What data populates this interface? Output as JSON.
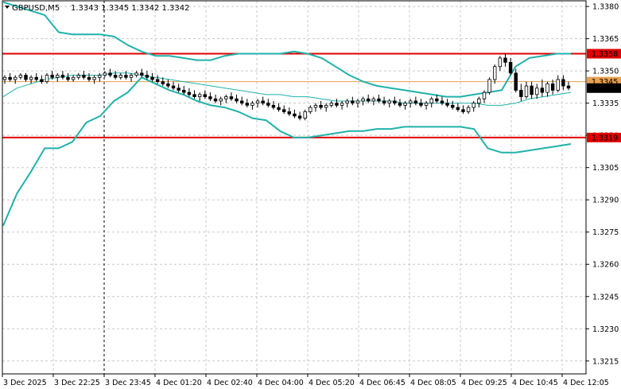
{
  "header": {
    "symbol_timeframe": "GBPUSD,M5",
    "ohlc": "1.3343 1.3345 1.3342 1.3342"
  },
  "chart_data": {
    "type": "candlestick",
    "symbol": "GBPUSD",
    "timeframe": "M5",
    "ylim": [
      1.3209,
      1.3383
    ],
    "y_ticks": [
      "1.3380",
      "1.3365",
      "1.3350",
      "1.3335",
      "1.3320",
      "1.3305",
      "1.3290",
      "1.3275",
      "1.3260",
      "1.3245",
      "1.3230",
      "1.3215"
    ],
    "x_ticks": [
      "3 Dec 2025",
      "3 Dec 22:25",
      "3 Dec 23:45",
      "4 Dec 01:20",
      "4 Dec 02:40",
      "4 Dec 04:00",
      "4 Dec 05:20",
      "4 Dec 06:45",
      "4 Dec 08:05",
      "4 Dec 09:25",
      "4 Dec 10:45",
      "4 Dec 12:05"
    ],
    "grid": true,
    "levels": [
      {
        "label": "1.3358",
        "value": 1.3358,
        "color": "#e00000"
      },
      {
        "label": "1.3319",
        "value": 1.3319,
        "color": "#e00000"
      },
      {
        "label": "1.3345",
        "value": 1.3345,
        "color": "#e8a050"
      }
    ],
    "current_price": {
      "label": "1.3342",
      "value": 1.3342
    },
    "series": [
      {
        "name": "bollinger-upper",
        "color": "#20b2aa",
        "values": [
          1.3382,
          1.338,
          1.3378,
          1.3376,
          1.3368,
          1.3367,
          1.3367,
          1.3367,
          1.3366,
          1.3362,
          1.3359,
          1.3357,
          1.3357,
          1.3356,
          1.3355,
          1.3355,
          1.3357,
          1.3358,
          1.3358,
          1.3358,
          1.3358,
          1.3359,
          1.3358,
          1.3356,
          1.3352,
          1.3348,
          1.3345,
          1.3343,
          1.3342,
          1.3341,
          1.334,
          1.3339,
          1.3338,
          1.3338,
          1.3339,
          1.334,
          1.3341,
          1.3352,
          1.3356,
          1.3357,
          1.3358,
          1.3358
        ]
      },
      {
        "name": "bollinger-middle",
        "color": "#20b2aa",
        "values": [
          1.3338,
          1.3342,
          1.3344,
          1.3346,
          1.3347,
          1.3348,
          1.3348,
          1.3348,
          1.3349,
          1.3349,
          1.3348,
          1.3347,
          1.3346,
          1.3345,
          1.3344,
          1.3343,
          1.3342,
          1.3341,
          1.334,
          1.3339,
          1.3339,
          1.3338,
          1.3338,
          1.3337,
          1.3336,
          1.3336,
          1.3336,
          1.3336,
          1.3336,
          1.3335,
          1.3335,
          1.3335,
          1.3335,
          1.3335,
          1.3335,
          1.3334,
          1.3334,
          1.3335,
          1.3337,
          1.3338,
          1.3339,
          1.334
        ]
      },
      {
        "name": "bollinger-lower",
        "color": "#20b2aa",
        "values": [
          1.3278,
          1.3293,
          1.3303,
          1.3314,
          1.3314,
          1.3317,
          1.3326,
          1.3329,
          1.3336,
          1.334,
          1.3347,
          1.3344,
          1.3341,
          1.3339,
          1.3336,
          1.3334,
          1.3333,
          1.3331,
          1.3328,
          1.3327,
          1.3322,
          1.3319,
          1.3319,
          1.332,
          1.3321,
          1.3322,
          1.3322,
          1.3323,
          1.3323,
          1.3324,
          1.3324,
          1.3324,
          1.3324,
          1.3324,
          1.3323,
          1.3314,
          1.3312,
          1.3312,
          1.3313,
          1.3314,
          1.3315,
          1.3316
        ]
      }
    ],
    "candles": [
      [
        1.3346,
        1.3348,
        1.3344,
        1.3347
      ],
      [
        1.3347,
        1.3349,
        1.3345,
        1.3346
      ],
      [
        1.3346,
        1.3348,
        1.3344,
        1.3347
      ],
      [
        1.3347,
        1.3349,
        1.3346,
        1.3348
      ],
      [
        1.3348,
        1.3349,
        1.3345,
        1.3346
      ],
      [
        1.3346,
        1.3348,
        1.3344,
        1.3347
      ],
      [
        1.3347,
        1.3349,
        1.3345,
        1.3346
      ],
      [
        1.3346,
        1.3348,
        1.3344,
        1.3345
      ],
      [
        1.3345,
        1.3349,
        1.3344,
        1.3348
      ],
      [
        1.3348,
        1.335,
        1.3346,
        1.3347
      ],
      [
        1.3347,
        1.3349,
        1.3345,
        1.3348
      ],
      [
        1.3348,
        1.335,
        1.3346,
        1.3347
      ],
      [
        1.3347,
        1.3349,
        1.3345,
        1.3346
      ],
      [
        1.3346,
        1.3348,
        1.3345,
        1.3347
      ],
      [
        1.3347,
        1.3349,
        1.3346,
        1.3348
      ],
      [
        1.3348,
        1.335,
        1.3346,
        1.3347
      ],
      [
        1.3347,
        1.3349,
        1.3345,
        1.3346
      ],
      [
        1.3346,
        1.3348,
        1.3344,
        1.3347
      ],
      [
        1.3347,
        1.3349,
        1.3345,
        1.3348
      ],
      [
        1.3348,
        1.335,
        1.3347,
        1.3349
      ],
      [
        1.3349,
        1.3351,
        1.3347,
        1.3348
      ],
      [
        1.3348,
        1.335,
        1.3346,
        1.3347
      ],
      [
        1.3347,
        1.3349,
        1.3346,
        1.3348
      ],
      [
        1.3348,
        1.335,
        1.3346,
        1.3347
      ],
      [
        1.3347,
        1.3349,
        1.3345,
        1.3348
      ],
      [
        1.3348,
        1.335,
        1.3347,
        1.3349
      ],
      [
        1.3349,
        1.3351,
        1.3347,
        1.3348
      ],
      [
        1.3348,
        1.335,
        1.3346,
        1.3347
      ],
      [
        1.3347,
        1.3349,
        1.3345,
        1.3346
      ],
      [
        1.3346,
        1.3348,
        1.3344,
        1.3345
      ],
      [
        1.3345,
        1.3347,
        1.3343,
        1.3344
      ],
      [
        1.3344,
        1.3346,
        1.3342,
        1.3343
      ],
      [
        1.3343,
        1.3345,
        1.3341,
        1.3342
      ],
      [
        1.3342,
        1.3344,
        1.334,
        1.3341
      ],
      [
        1.3341,
        1.3343,
        1.3339,
        1.334
      ],
      [
        1.334,
        1.3342,
        1.3338,
        1.3339
      ],
      [
        1.3339,
        1.3341,
        1.3337,
        1.3338
      ],
      [
        1.3338,
        1.334,
        1.3336,
        1.3339
      ],
      [
        1.3339,
        1.3341,
        1.3337,
        1.3338
      ],
      [
        1.3338,
        1.334,
        1.3336,
        1.3337
      ],
      [
        1.3337,
        1.3339,
        1.3335,
        1.3336
      ],
      [
        1.3336,
        1.3338,
        1.3334,
        1.3337
      ],
      [
        1.3337,
        1.3339,
        1.3335,
        1.3338
      ],
      [
        1.3338,
        1.334,
        1.3336,
        1.3337
      ],
      [
        1.3337,
        1.3339,
        1.3335,
        1.3336
      ],
      [
        1.3336,
        1.3338,
        1.3334,
        1.3335
      ],
      [
        1.3335,
        1.3337,
        1.3333,
        1.3334
      ],
      [
        1.3334,
        1.3336,
        1.3332,
        1.3335
      ],
      [
        1.3335,
        1.3337,
        1.3333,
        1.3336
      ],
      [
        1.3336,
        1.3338,
        1.3334,
        1.3335
      ],
      [
        1.3335,
        1.3337,
        1.3333,
        1.3334
      ],
      [
        1.3334,
        1.3336,
        1.3332,
        1.3333
      ],
      [
        1.3333,
        1.3335,
        1.3331,
        1.3332
      ],
      [
        1.3332,
        1.3334,
        1.333,
        1.3331
      ],
      [
        1.3331,
        1.3333,
        1.3329,
        1.333
      ],
      [
        1.333,
        1.3332,
        1.3328,
        1.3329
      ],
      [
        1.3329,
        1.3331,
        1.3327,
        1.3328
      ],
      [
        1.3328,
        1.3332,
        1.3327,
        1.3331
      ],
      [
        1.3331,
        1.3334,
        1.333,
        1.3333
      ],
      [
        1.3333,
        1.3335,
        1.3331,
        1.3334
      ],
      [
        1.3334,
        1.3336,
        1.3332,
        1.3333
      ],
      [
        1.3333,
        1.3335,
        1.3331,
        1.3334
      ],
      [
        1.3334,
        1.3336,
        1.3333,
        1.3335
      ],
      [
        1.3335,
        1.3337,
        1.3333,
        1.3334
      ],
      [
        1.3334,
        1.3336,
        1.3332,
        1.3335
      ],
      [
        1.3335,
        1.3337,
        1.3333,
        1.3336
      ],
      [
        1.3336,
        1.3338,
        1.3334,
        1.3335
      ],
      [
        1.3335,
        1.3337,
        1.3333,
        1.3336
      ],
      [
        1.3336,
        1.3338,
        1.3334,
        1.3337
      ],
      [
        1.3337,
        1.3339,
        1.3335,
        1.3336
      ],
      [
        1.3336,
        1.3338,
        1.3334,
        1.3337
      ],
      [
        1.3337,
        1.3339,
        1.3335,
        1.3336
      ],
      [
        1.3336,
        1.3338,
        1.3334,
        1.3335
      ],
      [
        1.3335,
        1.3337,
        1.3333,
        1.3336
      ],
      [
        1.3336,
        1.3338,
        1.3334,
        1.3335
      ],
      [
        1.3335,
        1.3337,
        1.3333,
        1.3334
      ],
      [
        1.3334,
        1.3336,
        1.3332,
        1.3335
      ],
      [
        1.3335,
        1.3337,
        1.3333,
        1.3336
      ],
      [
        1.3336,
        1.3338,
        1.3334,
        1.3335
      ],
      [
        1.3335,
        1.3337,
        1.3333,
        1.3334
      ],
      [
        1.3334,
        1.3336,
        1.3332,
        1.3335
      ],
      [
        1.3335,
        1.3338,
        1.3333,
        1.3337
      ],
      [
        1.3337,
        1.3339,
        1.3335,
        1.3336
      ],
      [
        1.3336,
        1.3338,
        1.3334,
        1.3335
      ],
      [
        1.3335,
        1.3337,
        1.3333,
        1.3334
      ],
      [
        1.3334,
        1.3336,
        1.3332,
        1.3333
      ],
      [
        1.3333,
        1.3335,
        1.3331,
        1.3332
      ],
      [
        1.3332,
        1.3334,
        1.333,
        1.3331
      ],
      [
        1.3331,
        1.3334,
        1.333,
        1.3333
      ],
      [
        1.3333,
        1.3336,
        1.3331,
        1.3335
      ],
      [
        1.3335,
        1.3338,
        1.3333,
        1.3337
      ],
      [
        1.3337,
        1.3341,
        1.3335,
        1.334
      ],
      [
        1.334,
        1.3347,
        1.3339,
        1.3346
      ],
      [
        1.3346,
        1.3353,
        1.3344,
        1.3352
      ],
      [
        1.3352,
        1.3357,
        1.335,
        1.3356
      ],
      [
        1.3356,
        1.3358,
        1.3352,
        1.3354
      ],
      [
        1.3354,
        1.3356,
        1.3348,
        1.3349
      ],
      [
        1.3349,
        1.3351,
        1.334,
        1.3341
      ],
      [
        1.3341,
        1.3344,
        1.3336,
        1.3338
      ],
      [
        1.3338,
        1.3345,
        1.3337,
        1.3343
      ],
      [
        1.3343,
        1.3345,
        1.3337,
        1.3339
      ],
      [
        1.3339,
        1.3344,
        1.3337,
        1.3342
      ],
      [
        1.3342,
        1.3346,
        1.3338,
        1.334
      ],
      [
        1.334,
        1.3345,
        1.3338,
        1.3344
      ],
      [
        1.3344,
        1.3346,
        1.3339,
        1.3341
      ],
      [
        1.3341,
        1.3348,
        1.334,
        1.3346
      ],
      [
        1.3346,
        1.3348,
        1.3341,
        1.3343
      ],
      [
        1.3343,
        1.3345,
        1.3341,
        1.3342
      ]
    ],
    "vertical_marker_x_tick": "3 Dec 23:45"
  }
}
